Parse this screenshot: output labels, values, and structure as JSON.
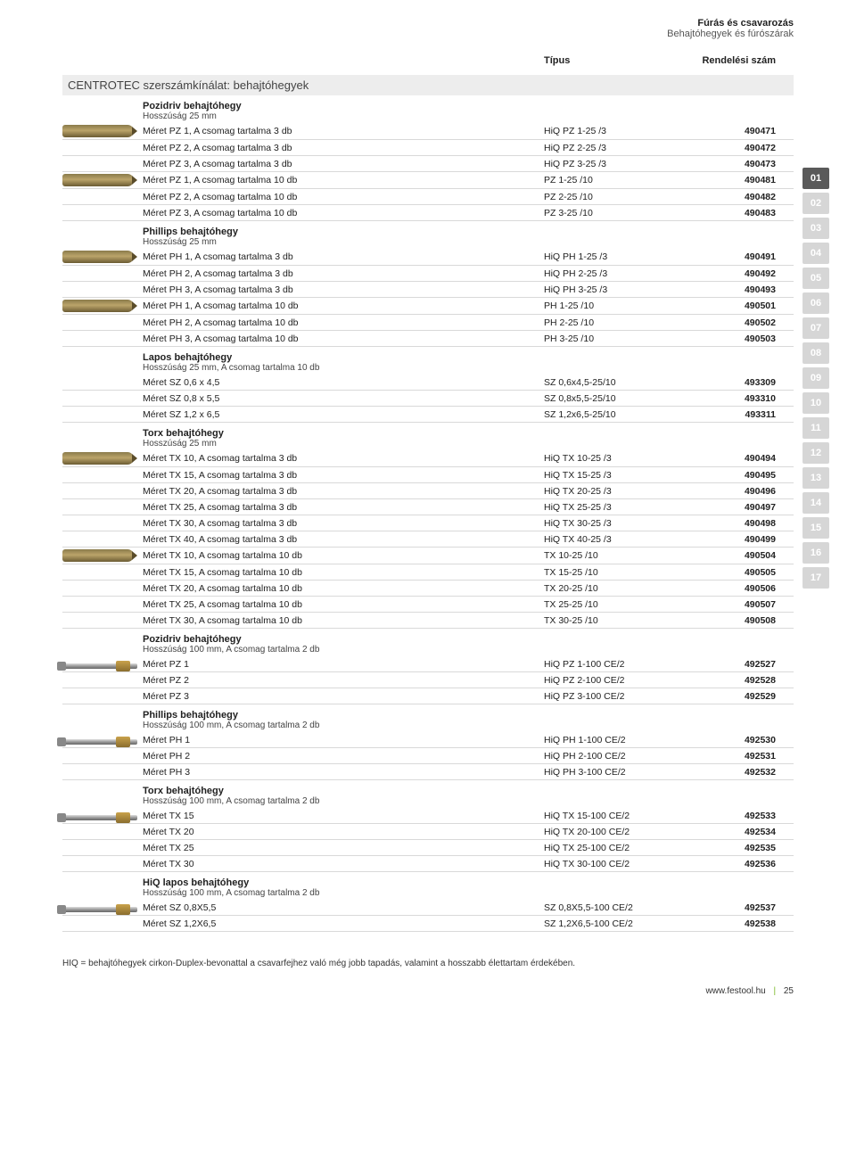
{
  "header": {
    "title": "Fúrás és csavarozás",
    "subtitle": "Behajtóhegyek és fúrószárak"
  },
  "columns": {
    "type": "Típus",
    "order": "Rendelési szám"
  },
  "section_title": "CENTROTEC szerszámkínálat: behajtóhegyek",
  "side_tabs": [
    "01",
    "02",
    "03",
    "04",
    "05",
    "06",
    "07",
    "08",
    "09",
    "10",
    "11",
    "12",
    "13",
    "14",
    "15",
    "16",
    "17"
  ],
  "active_tab": "01",
  "groups": [
    {
      "title": "Pozidriv behajtóhegy",
      "sub": "Hosszúság 25 mm",
      "img": "short",
      "rows": [
        {
          "desc": "Méret PZ 1, A csomag tartalma 3 db",
          "type": "HiQ PZ 1-25 /3",
          "ord": "490471"
        },
        {
          "desc": "Méret PZ 2, A csomag tartalma 3 db",
          "type": "HiQ PZ 2-25 /3",
          "ord": "490472"
        },
        {
          "desc": "Méret PZ 3, A csomag tartalma 3 db",
          "type": "HiQ PZ 3-25 /3",
          "ord": "490473"
        }
      ]
    },
    {
      "title": "",
      "sub": "",
      "img": "short",
      "rows": [
        {
          "desc": "Méret PZ 1, A csomag tartalma 10 db",
          "type": "PZ 1-25 /10",
          "ord": "490481"
        },
        {
          "desc": "Méret PZ 2, A csomag tartalma 10 db",
          "type": "PZ 2-25 /10",
          "ord": "490482"
        },
        {
          "desc": "Méret PZ 3, A csomag tartalma 10 db",
          "type": "PZ 3-25 /10",
          "ord": "490483"
        }
      ]
    },
    {
      "title": "Phillips behajtóhegy",
      "sub": "Hosszúság 25 mm",
      "img": "short",
      "rows": [
        {
          "desc": "Méret PH 1, A csomag tartalma 3 db",
          "type": "HiQ PH 1-25 /3",
          "ord": "490491"
        },
        {
          "desc": "Méret PH 2, A csomag tartalma 3 db",
          "type": "HiQ PH 2-25 /3",
          "ord": "490492"
        },
        {
          "desc": "Méret PH 3, A csomag tartalma 3 db",
          "type": "HiQ PH 3-25 /3",
          "ord": "490493"
        }
      ]
    },
    {
      "title": "",
      "sub": "",
      "img": "short",
      "rows": [
        {
          "desc": "Méret PH 1, A csomag tartalma 10 db",
          "type": "PH 1-25 /10",
          "ord": "490501"
        },
        {
          "desc": "Méret PH 2, A csomag tartalma 10 db",
          "type": "PH 2-25 /10",
          "ord": "490502"
        },
        {
          "desc": "Méret PH 3, A csomag tartalma 10 db",
          "type": "PH 3-25 /10",
          "ord": "490503"
        }
      ]
    },
    {
      "title": "Lapos behajtóhegy",
      "sub": "Hosszúság 25 mm, A csomag tartalma 10 db",
      "img": "",
      "rows": [
        {
          "desc": "Méret SZ 0,6 x 4,5",
          "type": "SZ 0,6x4,5-25/10",
          "ord": "493309"
        },
        {
          "desc": "Méret SZ 0,8 x 5,5",
          "type": "SZ 0,8x5,5-25/10",
          "ord": "493310"
        },
        {
          "desc": "Méret SZ 1,2 x 6,5",
          "type": "SZ 1,2x6,5-25/10",
          "ord": "493311"
        }
      ]
    },
    {
      "title": "Torx behajtóhegy",
      "sub": "Hosszúság 25 mm",
      "img": "short",
      "rows": [
        {
          "desc": "Méret TX 10, A csomag tartalma 3 db",
          "type": "HiQ TX 10-25 /3",
          "ord": "490494"
        },
        {
          "desc": "Méret TX 15, A csomag tartalma 3 db",
          "type": "HiQ TX 15-25 /3",
          "ord": "490495"
        },
        {
          "desc": "Méret TX 20, A csomag tartalma 3 db",
          "type": "HiQ TX 20-25 /3",
          "ord": "490496"
        },
        {
          "desc": "Méret TX 25, A csomag tartalma 3 db",
          "type": "HiQ TX 25-25 /3",
          "ord": "490497"
        },
        {
          "desc": "Méret TX 30, A csomag tartalma 3 db",
          "type": "HiQ TX 30-25 /3",
          "ord": "490498"
        },
        {
          "desc": "Méret TX 40, A csomag tartalma 3 db",
          "type": "HiQ TX 40-25 /3",
          "ord": "490499"
        }
      ]
    },
    {
      "title": "",
      "sub": "",
      "img": "short",
      "rows": [
        {
          "desc": "Méret TX 10, A csomag tartalma 10 db",
          "type": "TX 10-25 /10",
          "ord": "490504"
        },
        {
          "desc": "Méret TX 15, A csomag tartalma 10 db",
          "type": "TX 15-25 /10",
          "ord": "490505"
        },
        {
          "desc": "Méret TX 20, A csomag tartalma 10 db",
          "type": "TX 20-25 /10",
          "ord": "490506"
        },
        {
          "desc": "Méret TX 25, A csomag tartalma 10 db",
          "type": "TX 25-25 /10",
          "ord": "490507"
        },
        {
          "desc": "Méret TX 30, A csomag tartalma 10 db",
          "type": "TX 30-25 /10",
          "ord": "490508"
        }
      ]
    },
    {
      "title": "Pozidriv behajtóhegy",
      "sub": "Hosszúság 100 mm, A csomag tartalma 2 db",
      "img": "long",
      "rows": [
        {
          "desc": "Méret PZ 1",
          "type": "HiQ PZ 1-100 CE/2",
          "ord": "492527"
        },
        {
          "desc": "Méret PZ 2",
          "type": "HiQ PZ 2-100 CE/2",
          "ord": "492528"
        },
        {
          "desc": "Méret PZ 3",
          "type": "HiQ PZ 3-100 CE/2",
          "ord": "492529"
        }
      ]
    },
    {
      "title": "Phillips behajtóhegy",
      "sub": "Hosszúság 100 mm, A csomag tartalma 2 db",
      "img": "long",
      "rows": [
        {
          "desc": "Méret PH 1",
          "type": "HiQ PH 1-100 CE/2",
          "ord": "492530"
        },
        {
          "desc": "Méret PH 2",
          "type": "HiQ PH 2-100 CE/2",
          "ord": "492531"
        },
        {
          "desc": "Méret PH 3",
          "type": "HiQ PH 3-100 CE/2",
          "ord": "492532"
        }
      ]
    },
    {
      "title": "Torx behajtóhegy",
      "sub": "Hosszúság 100 mm, A csomag tartalma 2 db",
      "img": "long",
      "rows": [
        {
          "desc": "Méret TX 15",
          "type": "HiQ TX 15-100 CE/2",
          "ord": "492533"
        },
        {
          "desc": "Méret TX 20",
          "type": "HiQ TX 20-100 CE/2",
          "ord": "492534"
        },
        {
          "desc": "Méret TX 25",
          "type": "HiQ TX 25-100 CE/2",
          "ord": "492535"
        },
        {
          "desc": "Méret TX 30",
          "type": "HiQ TX 30-100 CE/2",
          "ord": "492536"
        }
      ]
    },
    {
      "title": "HiQ lapos behajtóhegy",
      "sub": "Hosszúság 100 mm, A csomag tartalma 2 db",
      "img": "long",
      "rows": [
        {
          "desc": "Méret SZ 0,8X5,5",
          "type": "SZ 0,8X5,5-100 CE/2",
          "ord": "492537"
        },
        {
          "desc": "Méret SZ 1,2X6,5",
          "type": "SZ 1,2X6,5-100 CE/2",
          "ord": "492538"
        }
      ]
    }
  ],
  "footnote": "HIQ = behajtóhegyek cirkon-Duplex-bevonattal a csavarfejhez való még jobb tapadás, valamint a hosszabb élettartam érdekében.",
  "footer": {
    "url": "www.festool.hu",
    "page": "25"
  }
}
